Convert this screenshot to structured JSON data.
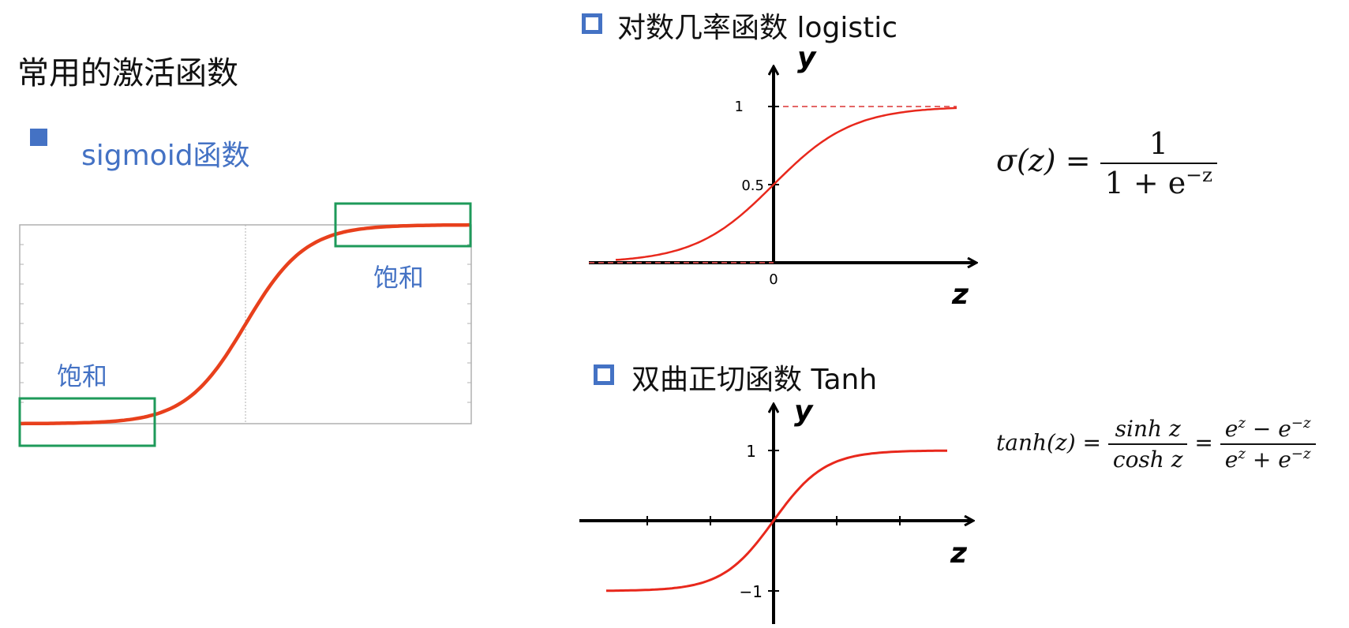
{
  "page": {
    "title": "常用的激活函数",
    "sigmoid_label": "sigmoid函数"
  },
  "left_chart": {
    "saturation_left": "饱和",
    "saturation_right": "饱和",
    "curve_color": "#e8401c",
    "box_color": "#1e9a5a"
  },
  "logistic": {
    "heading": "对数几率函数 logistic",
    "axis_x": "z",
    "axis_y": "y",
    "tick_1": "1",
    "tick_half": "0.5",
    "tick_0": "0",
    "formula": {
      "lhs": "σ(z) =",
      "numerator": "1",
      "den_base": "1 + e",
      "den_exp": "−z"
    }
  },
  "tanh": {
    "heading": "双曲正切函数 Tanh",
    "axis_x": "z",
    "axis_y": "y",
    "tick_pos": "1",
    "tick_neg": "−1",
    "formula": {
      "lhs": "tanh(z) =",
      "frac1_num": "sinh z",
      "frac1_den": "cosh z",
      "eq": "=",
      "frac2_num_a": "e",
      "frac2_num_a_exp": "z",
      "frac2_num_op": " − e",
      "frac2_num_b_exp": "−z",
      "frac2_den_a": "e",
      "frac2_den_a_exp": "z",
      "frac2_den_op": " + e",
      "frac2_den_b_exp": "−z"
    }
  },
  "colors": {
    "accent_blue": "#4472c4",
    "curve_red": "#e8401c",
    "box_green": "#1e9a5a",
    "dashed_red": "#e05050"
  }
}
